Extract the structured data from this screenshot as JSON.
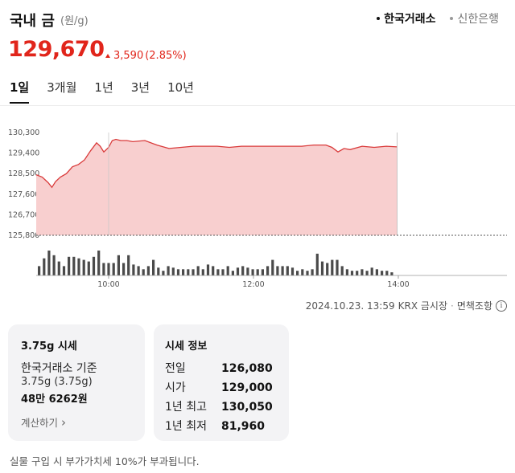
{
  "header": {
    "title": "국내 금",
    "unit": "(원/g)",
    "sources": [
      {
        "label": "한국거래소",
        "active": true
      },
      {
        "label": "신한은행",
        "active": false
      }
    ]
  },
  "price": {
    "value": "129,670",
    "change": "3,590",
    "change_pct": "(2.85%)"
  },
  "tabs": [
    {
      "label": "1일",
      "active": true
    },
    {
      "label": "3개월",
      "active": false
    },
    {
      "label": "1년",
      "active": false
    },
    {
      "label": "3년",
      "active": false
    },
    {
      "label": "10년",
      "active": false
    }
  ],
  "chart_data": {
    "type": "area",
    "y_ticks": [
      "130,300",
      "129,400",
      "128,500",
      "127,600",
      "126,700",
      "125,800"
    ],
    "x_ticks": [
      "10:00",
      "12:00",
      "14:00"
    ],
    "ylim": [
      125800,
      130300
    ],
    "xlim": [
      "09:00",
      "15:30"
    ],
    "line_color": "#d93a3a",
    "fill_color": "#f8cfcf",
    "series": [
      {
        "x": [
          "09:00",
          "09:05",
          "09:10",
          "09:13",
          "09:16",
          "09:20",
          "09:25",
          "09:30",
          "09:35",
          "09:40",
          "09:45",
          "09:50",
          "09:53",
          "09:56",
          "10:00",
          "10:03",
          "10:06",
          "10:10",
          "10:15",
          "10:20",
          "10:30",
          "10:40",
          "10:50",
          "11:00",
          "11:10",
          "11:20",
          "11:30",
          "11:40",
          "11:50",
          "12:00",
          "12:10",
          "12:20",
          "12:30",
          "12:40",
          "12:50",
          "13:00",
          "13:05",
          "13:10",
          "13:15",
          "13:20",
          "13:30",
          "13:40",
          "13:50",
          "13:59"
        ],
        "y": [
          128450,
          128350,
          128100,
          127900,
          128150,
          128350,
          128500,
          128800,
          128900,
          129100,
          129500,
          129850,
          129700,
          129450,
          129650,
          129950,
          130000,
          129950,
          129950,
          129900,
          129950,
          129750,
          129600,
          129650,
          129700,
          129700,
          129700,
          129650,
          129700,
          129700,
          129700,
          129700,
          129700,
          129700,
          129750,
          129750,
          129650,
          129450,
          129600,
          129550,
          129700,
          129650,
          129700,
          129670
        ]
      }
    ],
    "volume": [
      6,
      11,
      16,
      13,
      9,
      6,
      12,
      12,
      11,
      10,
      9,
      12,
      16,
      8,
      8,
      8,
      13,
      8,
      13,
      7,
      6,
      4,
      6,
      10,
      5,
      3,
      6,
      5,
      4,
      4,
      4,
      4,
      6,
      4,
      7,
      6,
      4,
      4,
      6,
      3,
      5,
      6,
      5,
      4,
      4,
      4,
      6,
      10,
      6,
      6,
      6,
      5,
      3,
      4,
      3,
      4,
      14,
      9,
      8,
      10,
      10,
      6,
      4,
      3,
      3,
      4,
      3,
      5,
      4,
      3,
      3,
      2
    ]
  },
  "meta": {
    "timestamp": "2024.10.23. 13:59",
    "market": "KRX 금시장",
    "disclaimer": "면책조항",
    "info_glyph": "i"
  },
  "card1": {
    "title": "3.75g 시세",
    "line1": "한국거래소 기준",
    "line2": "3.75g (3.75g)",
    "line3": "48만 6262원",
    "link": "계산하기",
    "link_chevron": "›"
  },
  "card2": {
    "title": "시세 정보",
    "rows": [
      {
        "label": "전일",
        "value": "126,080"
      },
      {
        "label": "시가",
        "value": "129,000"
      },
      {
        "label": "1년 최고",
        "value": "130,050"
      },
      {
        "label": "1년 최저",
        "value": "81,960"
      }
    ]
  },
  "footer": "실물 구입 시 부가가치세 10%가 부과됩니다."
}
